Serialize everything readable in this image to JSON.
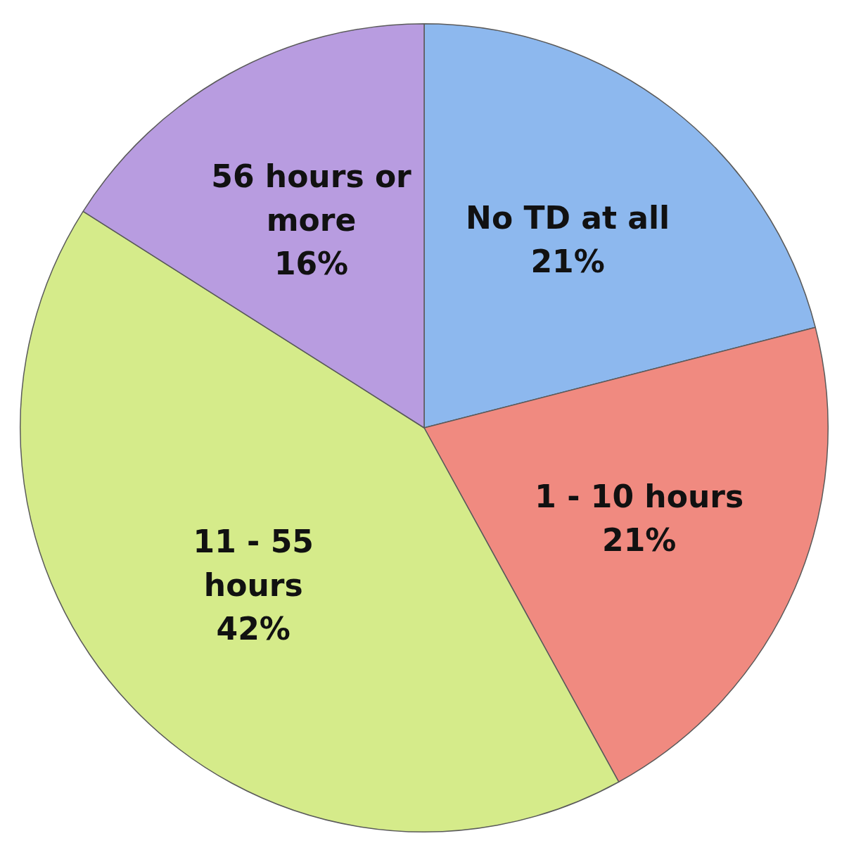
{
  "chart_data": {
    "type": "pie",
    "categories": [
      "No TD at all",
      "1 - 10 hours",
      "11 - 55 hours",
      "56 hours or more"
    ],
    "values": [
      21,
      21,
      42,
      16
    ],
    "value_labels": [
      "21%",
      "21%",
      "42%",
      "16%"
    ],
    "colors": [
      "#8db8ee",
      "#f08a80",
      "#d5eb8a",
      "#b89ce0"
    ],
    "legend": false
  }
}
